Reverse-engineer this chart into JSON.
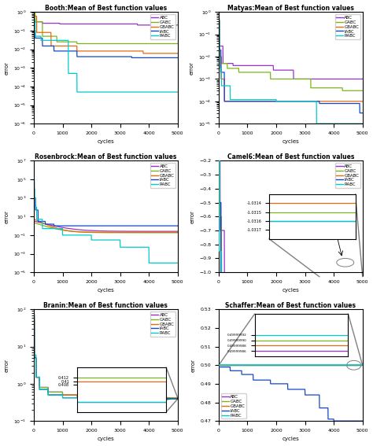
{
  "titles": [
    "Booth:Mean of Best function values",
    "Matyas:Mean of Best function values",
    "Rosenbrock:Mean of Best function values",
    "Camel6:Mean of Best function values",
    "Branin:Mean of Best function values",
    "Schaffer:Mean of Best function values"
  ],
  "algorithms": [
    "ABC",
    "GABC",
    "GBABC",
    "IABC",
    "RABC"
  ],
  "colors": [
    "#9932CC",
    "#7CB518",
    "#E86A10",
    "#1448C8",
    "#00CCCC"
  ],
  "xlabel": "cycles",
  "ylabel": "error"
}
